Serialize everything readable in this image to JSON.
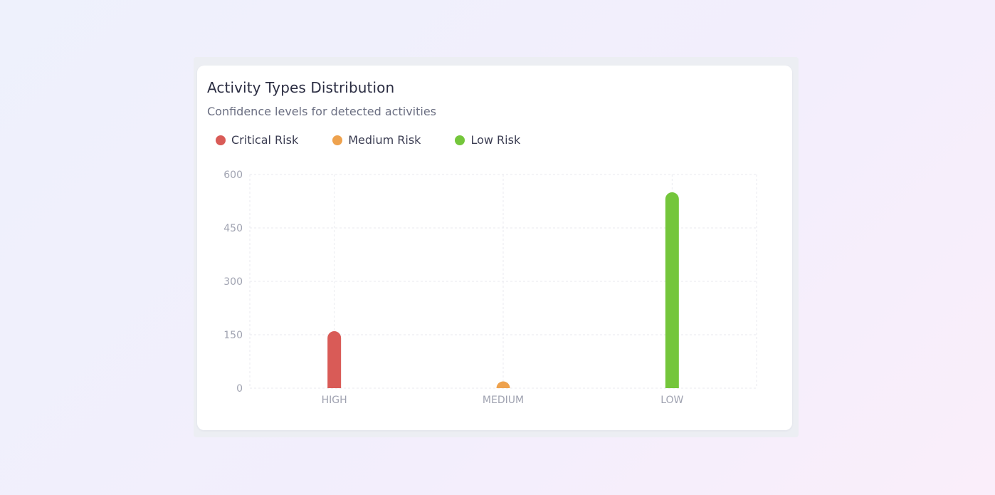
{
  "chart_data": {
    "type": "bar",
    "title": "Activity Types Distribution",
    "subtitle": "Confidence levels for detected activities",
    "categories": [
      "HIGH",
      "MEDIUM",
      "LOW"
    ],
    "series": [
      {
        "name": "Critical Risk",
        "color": "#d95b57",
        "values": [
          160,
          0,
          0
        ]
      },
      {
        "name": "Medium Risk",
        "color": "#eea24e",
        "values": [
          0,
          10,
          0
        ]
      },
      {
        "name": "Low Risk",
        "color": "#74c63b",
        "values": [
          0,
          0,
          550
        ]
      }
    ],
    "yticks": [
      "600",
      "450",
      "300",
      "150",
      "0"
    ],
    "ylim": [
      0,
      600
    ],
    "grid": true,
    "legend_position": "top-left",
    "xlabel": "",
    "ylabel": ""
  },
  "colors": {
    "grid": "#e9eaef",
    "tick_text": "#a0a3b1"
  }
}
